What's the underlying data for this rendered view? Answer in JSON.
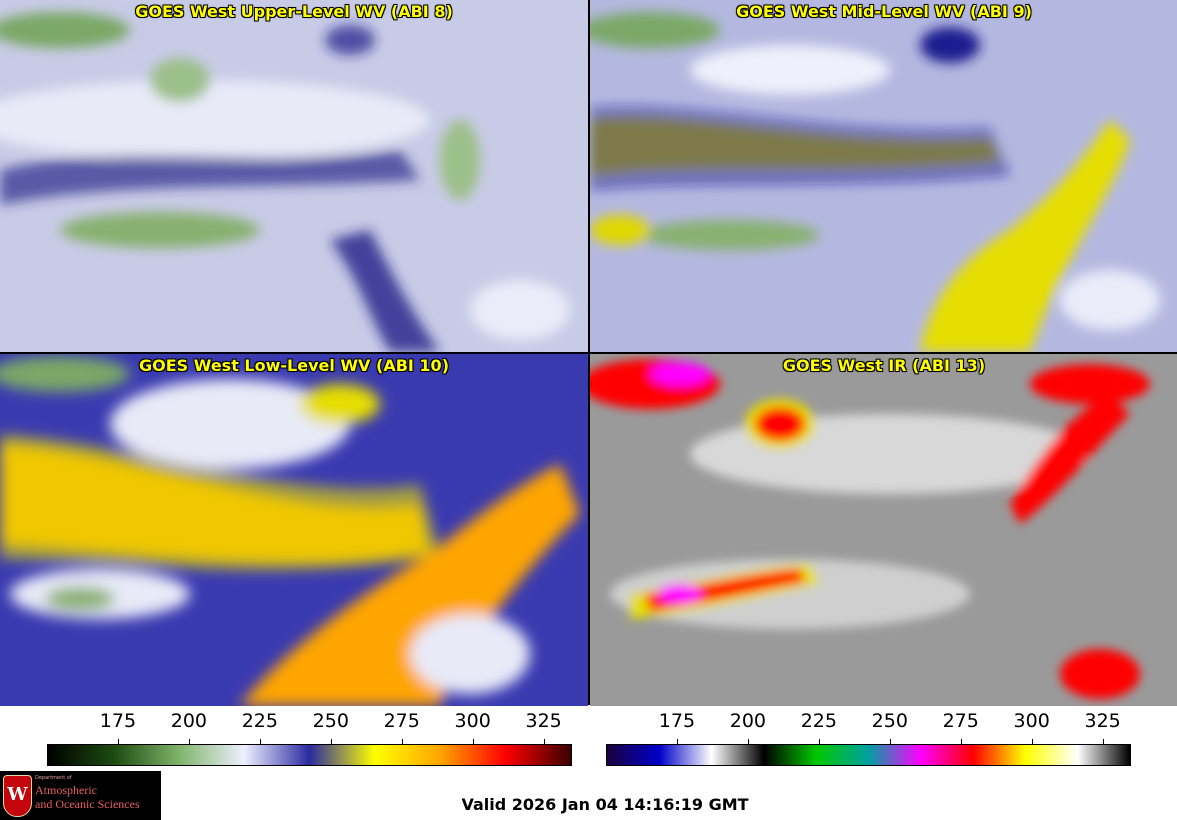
{
  "panels": [
    {
      "title": "GOES West Upper-Level WV (ABI 8)",
      "theme": "wv_upper"
    },
    {
      "title": "GOES West Mid-Level WV (ABI 9)",
      "theme": "wv_mid"
    },
    {
      "title": "GOES West Low-Level WV (ABI 10)",
      "theme": "wv_low"
    },
    {
      "title": "GOES West IR (ABI 13)",
      "theme": "ir"
    }
  ],
  "colorbars": {
    "wv": {
      "ticks": [
        "175",
        "200",
        "225",
        "250",
        "275",
        "300",
        "325"
      ],
      "min": 150,
      "max": 335,
      "stops": [
        "#000000",
        "#1d4a10",
        "#7fb36a",
        "#eef0ff",
        "#2a2aa0",
        "#ffff00",
        "#ffa500",
        "#ff0000",
        "#3a0000"
      ]
    },
    "ir": {
      "ticks": [
        "175",
        "200",
        "225",
        "250",
        "275",
        "300",
        "325"
      ],
      "min": 150,
      "max": 335,
      "stops": [
        "#1a0040",
        "#0000c8",
        "#ffffff",
        "#000000",
        "#00c800",
        "#00a0a0",
        "#ff00ff",
        "#ff0000",
        "#ffff00",
        "#ffffff",
        "#000000"
      ]
    }
  },
  "logo": {
    "dept_line": "Department of",
    "line1": "Atmospheric",
    "line2": "and Oceanic Sciences",
    "shield_letter": "W"
  },
  "valid_time": "Valid 2026 Jan 04 14:16:19 GMT",
  "colors": {
    "title": "#ffff00",
    "state_lines": "#ff2020",
    "coast": "#8b5a2b",
    "mexico_coast": "#10a010"
  }
}
